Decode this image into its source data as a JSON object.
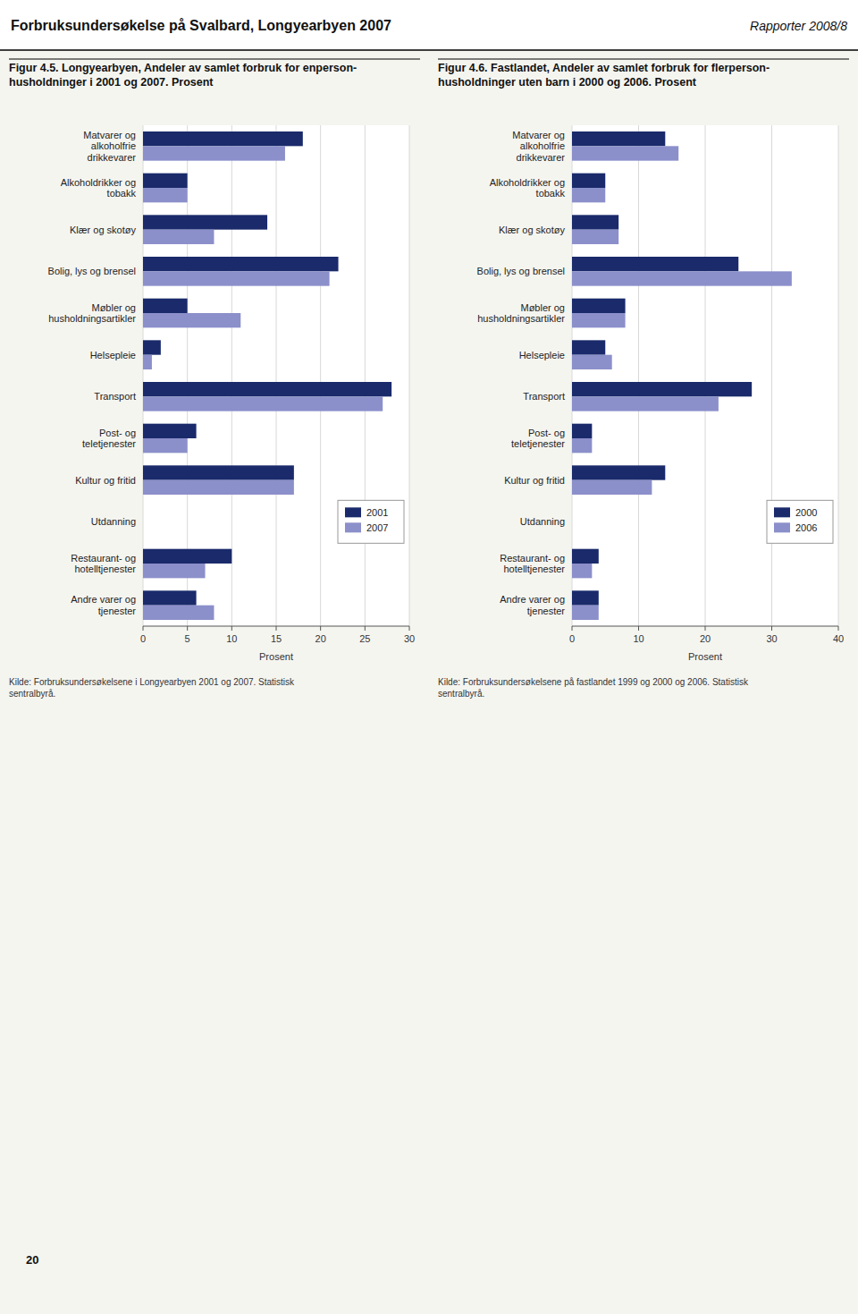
{
  "page_title": "Forbruksundersøkelse på Svalbard, Longyearbyen 2007",
  "page_subtitle": "Rapporter 2008/8",
  "page_number": "20",
  "chart_data": [
    {
      "type": "bar",
      "orientation": "horizontal",
      "title": "Figur 4.5. Longyearbyen, Andeler av samlet forbruk for enperson-\nhusholdninger i 2001 og 2007. Prosent",
      "categories": [
        "Matvarer og\nalkoholfrie\ndrikkevarer",
        "Alkoholdrikker og\ntobakk",
        "Klær og skotøy",
        "Bolig, lys og brensel",
        "Møbler og\nhusholdningsartikler",
        "Helsepleie",
        "Transport",
        "Post- og\nteletjenester",
        "Kultur og fritid",
        "Utdanning",
        "Restaurant- og\nhotelltjenester",
        "Andre varer og\ntjenester"
      ],
      "series": [
        {
          "name": "2001",
          "color": "#1a2a6b",
          "values": [
            18,
            5,
            14,
            22,
            5,
            2,
            28,
            6,
            17,
            0,
            10,
            6
          ]
        },
        {
          "name": "2007",
          "color": "#8b8fca",
          "values": [
            16,
            5,
            8,
            21,
            11,
            1,
            27,
            5,
            17,
            0,
            7,
            8
          ]
        }
      ],
      "xlim": [
        0,
        30
      ],
      "xticks": [
        0,
        5,
        10,
        15,
        20,
        25,
        30
      ],
      "x_label": "Prosent",
      "grid": true,
      "legend": "right",
      "source": "Kilde: Forbruksundersøkelsene i Longyearbyen 2001 og 2007. Statistisk\nsentralbyrå."
    },
    {
      "type": "bar",
      "orientation": "horizontal",
      "title": "Figur 4.6. Fastlandet, Andeler av samlet forbruk for flerperson-\nhusholdninger uten barn i 2000 og 2006. Prosent",
      "categories": [
        "Matvarer og\nalkoholfrie\ndrikkevarer",
        "Alkoholdrikker og\ntobakk",
        "Klær og skotøy",
        "Bolig, lys og brensel",
        "Møbler og\nhusholdningsartikler",
        "Helsepleie",
        "Transport",
        "Post- og\nteletjenester",
        "Kultur og fritid",
        "Utdanning",
        "Restaurant- og\nhotelltjenester",
        "Andre varer og\ntjenester"
      ],
      "series": [
        {
          "name": "2000",
          "color": "#1a2a6b",
          "values": [
            14,
            5,
            7,
            25,
            8,
            5,
            27,
            3,
            14,
            0,
            4,
            4
          ]
        },
        {
          "name": "2006",
          "color": "#8b8fca",
          "values": [
            16,
            5,
            7,
            33,
            8,
            6,
            22,
            3,
            12,
            0,
            3,
            4
          ]
        }
      ],
      "xlim": [
        0,
        40
      ],
      "xticks": [
        0,
        10,
        20,
        30,
        40
      ],
      "x_label": "Prosent",
      "grid": true,
      "legend": "right",
      "source": "Kilde: Forbruksundersøkelsene på fastlandet 1999 og 2000 og 2006. Statistisk\nsentralbyrå."
    }
  ]
}
